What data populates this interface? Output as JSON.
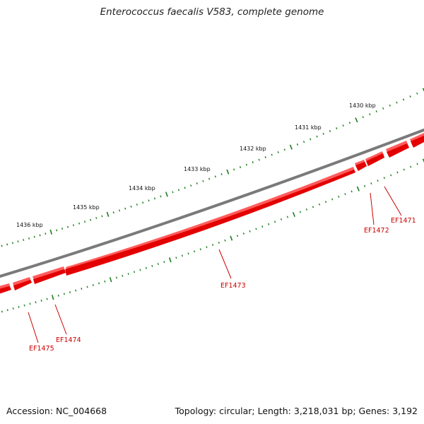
{
  "title": "Enterococcus faecalis V583, complete genome",
  "footer": {
    "accession": "Accession: NC_004668",
    "stats": "Topology: circular; Length: 3,218,031 bp; Genes: 3,192"
  },
  "colors": {
    "backbone": "#7a7a7a",
    "gene": "#e30000",
    "gene_highlight": "#ff5c5c",
    "tick": "#1e7d1e",
    "gene_label": "#cc0000"
  },
  "kbp_labels": [
    "1430 kbp",
    "1431 kbp",
    "1432 kbp",
    "1433 kbp",
    "1434 kbp",
    "1435 kbp",
    "1436 kbp"
  ],
  "genes": [
    "EF1471",
    "EF1472",
    "EF1473",
    "EF1474",
    "EF1475"
  ]
}
